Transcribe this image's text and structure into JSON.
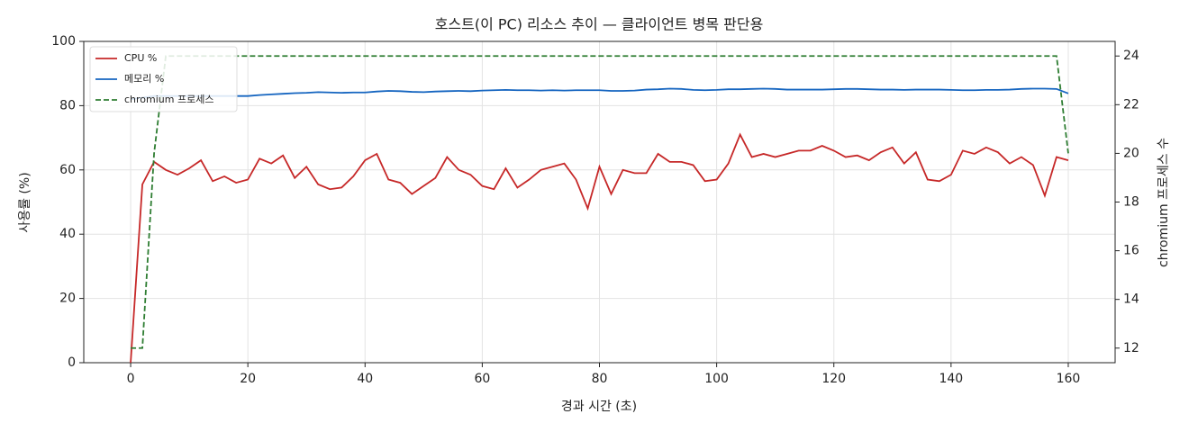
{
  "chart_data": {
    "type": "line",
    "title": "호스트(이 PC) 리소스 추이 — 클라이언트 병목 판단용",
    "xlabel": "경과 시간 (초)",
    "ylabel": "사용률 (%)",
    "y2label": "chromium 프로세스 수",
    "x": [
      0,
      2,
      4,
      6,
      8,
      10,
      12,
      14,
      16,
      18,
      20,
      22,
      24,
      26,
      28,
      30,
      32,
      34,
      36,
      38,
      40,
      42,
      44,
      46,
      48,
      50,
      52,
      54,
      56,
      58,
      60,
      62,
      64,
      66,
      68,
      70,
      72,
      74,
      76,
      78,
      80,
      82,
      84,
      86,
      88,
      90,
      92,
      94,
      96,
      98,
      100,
      102,
      104,
      106,
      108,
      110,
      112,
      114,
      116,
      118,
      120,
      122,
      124,
      126,
      128,
      130,
      132,
      134,
      136,
      138,
      140,
      142,
      144,
      146,
      148,
      150,
      152,
      154,
      156,
      158,
      160
    ],
    "series": [
      {
        "name": "CPU %",
        "color": "#c62828",
        "linestyle": "solid",
        "axis": "y",
        "values": [
          0,
          55.5,
          62.5,
          60,
          58.5,
          60.5,
          63,
          56.5,
          58,
          56,
          57,
          63.5,
          62,
          64.5,
          57.5,
          61,
          55.5,
          54,
          54.5,
          58,
          63,
          65,
          57,
          56,
          52.5,
          55,
          57.5,
          64,
          60,
          58.5,
          55,
          54,
          60.5,
          54.5,
          57,
          60,
          61,
          62,
          57,
          48,
          61,
          52.5,
          60,
          59,
          59,
          65,
          62.5,
          62.5,
          61.5,
          56.5,
          57,
          62,
          71,
          64,
          65,
          64,
          65,
          66,
          66,
          67.5,
          66,
          64,
          64.5,
          63,
          65.5,
          67,
          62,
          65.5,
          57,
          56.5,
          58.5,
          66,
          65,
          67,
          65.5,
          62,
          64,
          61.5,
          52,
          64,
          63
        ]
      },
      {
        "name": "메모리 %",
        "color": "#1565c0",
        "linestyle": "solid",
        "axis": "y",
        "values": [
          82,
          82.5,
          83,
          83,
          83,
          83,
          83,
          83,
          83,
          83,
          83,
          83.3,
          83.5,
          83.7,
          83.9,
          84,
          84.2,
          84.1,
          84,
          84.1,
          84.1,
          84.4,
          84.6,
          84.5,
          84.3,
          84.2,
          84.4,
          84.5,
          84.6,
          84.5,
          84.7,
          84.8,
          84.9,
          84.8,
          84.8,
          84.7,
          84.8,
          84.7,
          84.8,
          84.8,
          84.8,
          84.6,
          84.6,
          84.7,
          85,
          85.1,
          85.3,
          85.2,
          84.9,
          84.8,
          84.9,
          85.1,
          85.1,
          85.2,
          85.3,
          85.2,
          85,
          85,
          85,
          85,
          85.1,
          85.2,
          85.2,
          85.1,
          85,
          85,
          84.9,
          85,
          85,
          85,
          84.9,
          84.8,
          84.8,
          84.9,
          84.9,
          85,
          85.2,
          85.3,
          85.3,
          85.2,
          83.8
        ]
      },
      {
        "name": "chromium 프로세스",
        "color": "#2e7d32",
        "linestyle": "dashed",
        "axis": "y2",
        "values": [
          12,
          12,
          20,
          24,
          24,
          24,
          24,
          24,
          24,
          24,
          24,
          24,
          24,
          24,
          24,
          24,
          24,
          24,
          24,
          24,
          24,
          24,
          24,
          24,
          24,
          24,
          24,
          24,
          24,
          24,
          24,
          24,
          24,
          24,
          24,
          24,
          24,
          24,
          24,
          24,
          24,
          24,
          24,
          24,
          24,
          24,
          24,
          24,
          24,
          24,
          24,
          24,
          24,
          24,
          24,
          24,
          24,
          24,
          24,
          24,
          24,
          24,
          24,
          24,
          24,
          24,
          24,
          24,
          24,
          24,
          24,
          24,
          24,
          24,
          24,
          24,
          24,
          24,
          24,
          24,
          20
        ]
      }
    ],
    "xlim": [
      -8,
      168
    ],
    "xticks": [
      0,
      20,
      40,
      60,
      80,
      100,
      120,
      140,
      160
    ],
    "ylim": [
      0,
      100
    ],
    "yticks": [
      0,
      20,
      40,
      60,
      80,
      100
    ],
    "y2lim": [
      11.4,
      24.6
    ],
    "y2ticks": [
      12,
      14,
      16,
      18,
      20,
      22,
      24
    ],
    "grid": true,
    "legend": "upper-left"
  }
}
